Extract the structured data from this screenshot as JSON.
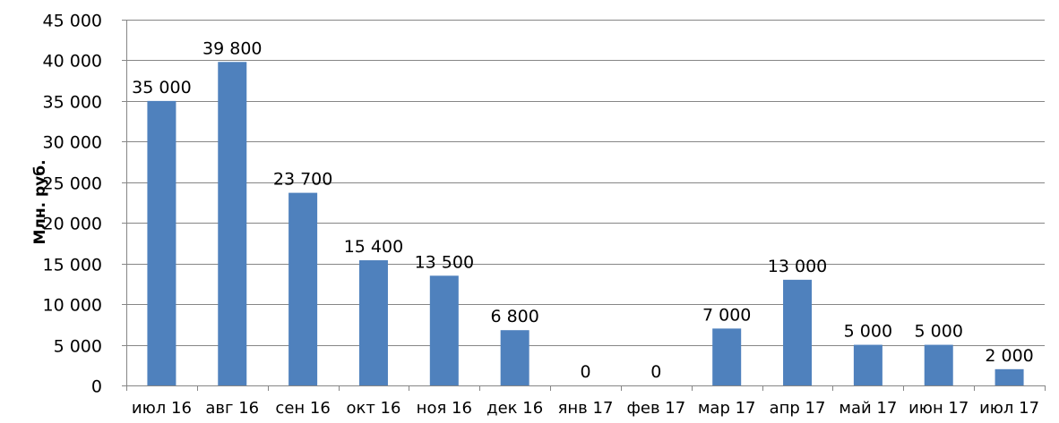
{
  "chart_data": {
    "type": "bar",
    "categories": [
      "июл 16",
      "авг 16",
      "сен 16",
      "окт 16",
      "ноя 16",
      "дек 16",
      "янв 17",
      "фев 17",
      "мар 17",
      "апр 17",
      "май 17",
      "июн 17",
      "июл 17"
    ],
    "values": [
      35000,
      39800,
      23700,
      15400,
      13500,
      6800,
      0,
      0,
      7000,
      13000,
      5000,
      5000,
      2000
    ],
    "data_labels": [
      "35 000",
      "39 800",
      "23 700",
      "15 400",
      "13 500",
      "6 800",
      "0",
      "0",
      "7 000",
      "13 000",
      "5 000",
      "5 000",
      "2 000"
    ],
    "ylabel": "Млн. руб.",
    "xlabel": "",
    "ylim": [
      0,
      45000
    ],
    "yticks": [
      0,
      5000,
      10000,
      15000,
      20000,
      25000,
      30000,
      35000,
      40000,
      45000
    ],
    "ytick_labels": [
      "0",
      "5 000",
      "10 000",
      "15 000",
      "20 000",
      "25 000",
      "30 000",
      "35 000",
      "40 000",
      "45 000"
    ],
    "grid": true,
    "legend": "none",
    "bar_color": "#4f81bd",
    "grid_color": "#868686"
  }
}
